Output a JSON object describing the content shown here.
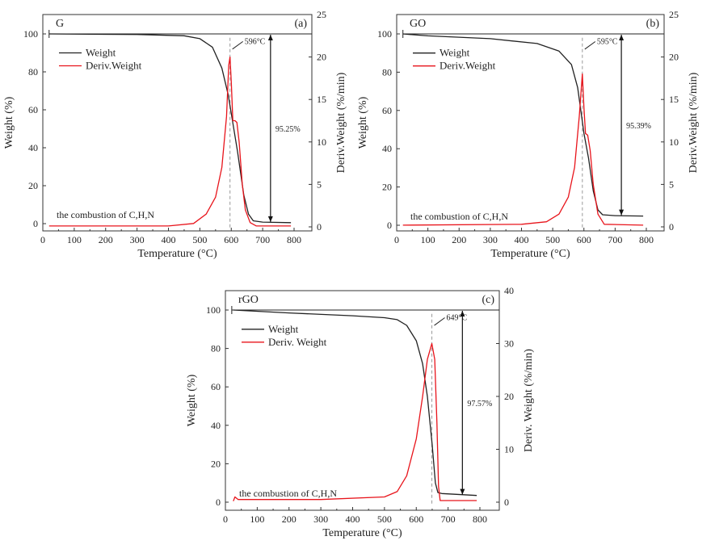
{
  "chart_data": [
    {
      "type": "line",
      "panel_label": "(a)",
      "sample": "G",
      "xlabel": "Temperature (°C)",
      "ylabel": "Weight (%)",
      "y2label": "Deriv.Weight (%/min)",
      "xlim": [
        0,
        850
      ],
      "xticks": [
        0,
        100,
        200,
        300,
        400,
        500,
        600,
        700,
        800
      ],
      "ylim_ticks": [
        0,
        20,
        40,
        60,
        80,
        100
      ],
      "y2ticks": [
        0,
        5,
        10,
        15,
        20,
        25
      ],
      "legend": [
        "Weight",
        "Deriv.Weight"
      ],
      "legend_position": "top-left",
      "annotation_text": "the combustion of C,H,N",
      "peak_label": "596°C",
      "peak_temp": 596,
      "mass_loss_label": "95.25%",
      "arrow_temp": 725,
      "series": [
        {
          "name": "Weight",
          "axis": "left",
          "color": "#222222",
          "points": [
            [
              20,
              100
            ],
            [
              300,
              99.7
            ],
            [
              450,
              99
            ],
            [
              500,
              97.5
            ],
            [
              540,
              93
            ],
            [
              570,
              82
            ],
            [
              590,
              68
            ],
            [
              600,
              58
            ],
            [
              620,
              38
            ],
            [
              640,
              15
            ],
            [
              655,
              5
            ],
            [
              670,
              1.5
            ],
            [
              700,
              0.8
            ],
            [
              790,
              0.5
            ]
          ]
        },
        {
          "name": "Deriv.Weight",
          "axis": "right",
          "color": "#e8141b",
          "points": [
            [
              20,
              0.1
            ],
            [
              400,
              0.1
            ],
            [
              480,
              0.4
            ],
            [
              520,
              1.5
            ],
            [
              550,
              3.5
            ],
            [
              570,
              7
            ],
            [
              585,
              13
            ],
            [
              592,
              19
            ],
            [
              596,
              20
            ],
            [
              600,
              17
            ],
            [
              605,
              12.5
            ],
            [
              612,
              12.5
            ],
            [
              618,
              12.3
            ],
            [
              625,
              10
            ],
            [
              635,
              5
            ],
            [
              645,
              2
            ],
            [
              660,
              0.5
            ],
            [
              680,
              0.1
            ],
            [
              790,
              0.1
            ]
          ]
        }
      ]
    },
    {
      "type": "line",
      "panel_label": "(b)",
      "sample": "GO",
      "xlabel": "Temperature (°C)",
      "ylabel": "Weight (%)",
      "y2label": "Deriv.Weight (%/min)",
      "xlim": [
        0,
        850
      ],
      "xticks": [
        0,
        100,
        200,
        300,
        400,
        500,
        600,
        700,
        800
      ],
      "ylim_ticks": [
        0,
        20,
        40,
        60,
        80,
        100
      ],
      "y2ticks": [
        0,
        5,
        10,
        15,
        20,
        25
      ],
      "legend": [
        "Weight",
        "Deriv.Weight"
      ],
      "legend_position": "top-left",
      "annotation_text": "the combustion of C,H,N",
      "peak_label": "595°C",
      "peak_temp": 595,
      "mass_loss_label": "95.39%",
      "arrow_temp": 720,
      "series": [
        {
          "name": "Weight",
          "axis": "left",
          "color": "#222222",
          "points": [
            [
              20,
              100
            ],
            [
              100,
              99
            ],
            [
              300,
              97.5
            ],
            [
              450,
              95
            ],
            [
              520,
              91
            ],
            [
              560,
              84
            ],
            [
              580,
              72
            ],
            [
              590,
              60
            ],
            [
              600,
              48
            ],
            [
              615,
              35
            ],
            [
              630,
              18
            ],
            [
              645,
              8
            ],
            [
              660,
              5.5
            ],
            [
              700,
              5
            ],
            [
              790,
              4.8
            ]
          ]
        },
        {
          "name": "Deriv.Weight",
          "axis": "right",
          "color": "#e8141b",
          "points": [
            [
              20,
              0.2
            ],
            [
              400,
              0.3
            ],
            [
              480,
              0.6
            ],
            [
              520,
              1.5
            ],
            [
              550,
              3.5
            ],
            [
              570,
              7
            ],
            [
              585,
              13
            ],
            [
              595,
              18
            ],
            [
              600,
              14
            ],
            [
              605,
              11
            ],
            [
              612,
              10.8
            ],
            [
              620,
              9
            ],
            [
              630,
              5
            ],
            [
              645,
              1.5
            ],
            [
              665,
              0.3
            ],
            [
              790,
              0.2
            ]
          ]
        }
      ]
    },
    {
      "type": "line",
      "panel_label": "(c)",
      "sample": "rGO",
      "xlabel": "Temperature (°C)",
      "ylabel": "Weight (%)",
      "y2label": "Deriv. Weight (%/min)",
      "xlim": [
        0,
        850
      ],
      "xticks": [
        0,
        100,
        200,
        300,
        400,
        500,
        600,
        700,
        800
      ],
      "ylim_ticks": [
        0,
        20,
        40,
        60,
        80,
        100
      ],
      "y2ticks": [
        0,
        10,
        20,
        30,
        40
      ],
      "legend": [
        "Weight",
        "Deriv. Weight"
      ],
      "legend_position": "top-left",
      "annotation_text": "the combustion of C,H,N",
      "peak_label": "649°C",
      "peak_temp": 649,
      "mass_loss_label": "97.57%",
      "arrow_temp": 745,
      "series": [
        {
          "name": "Weight",
          "axis": "left",
          "color": "#222222",
          "points": [
            [
              25,
              100
            ],
            [
              200,
              98.5
            ],
            [
              400,
              97
            ],
            [
              500,
              96
            ],
            [
              540,
              95
            ],
            [
              570,
              92
            ],
            [
              600,
              84
            ],
            [
              620,
              72
            ],
            [
              635,
              55
            ],
            [
              650,
              30
            ],
            [
              660,
              10
            ],
            [
              668,
              5
            ],
            [
              680,
              4.5
            ],
            [
              790,
              3.5
            ]
          ]
        },
        {
          "name": "Deriv. Weight",
          "axis": "right",
          "color": "#e8141b",
          "points": [
            [
              25,
              0.2
            ],
            [
              30,
              1
            ],
            [
              40,
              0.5
            ],
            [
              300,
              0.5
            ],
            [
              500,
              1
            ],
            [
              540,
              2
            ],
            [
              570,
              5
            ],
            [
              600,
              12
            ],
            [
              620,
              20
            ],
            [
              635,
              27
            ],
            [
              649,
              30
            ],
            [
              658,
              27
            ],
            [
              665,
              15
            ],
            [
              670,
              3
            ],
            [
              675,
              0.3
            ],
            [
              790,
              0.3
            ]
          ]
        }
      ]
    }
  ]
}
